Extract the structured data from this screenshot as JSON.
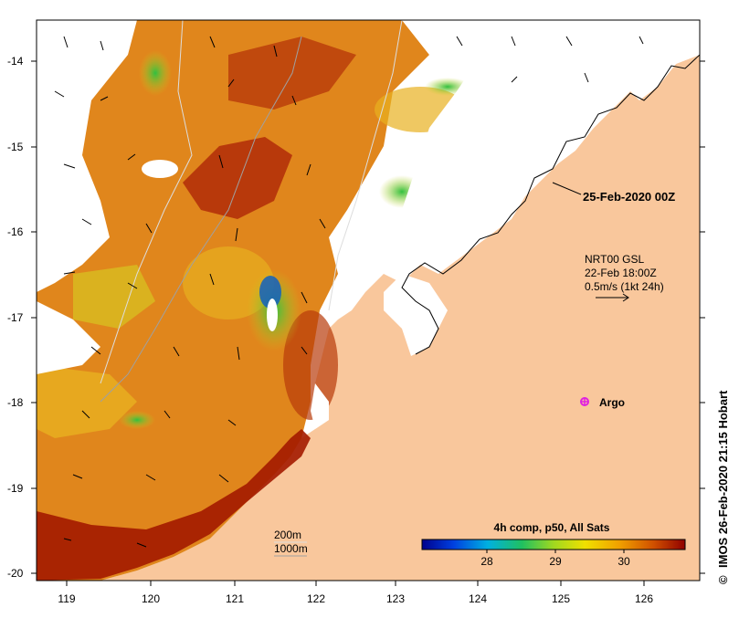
{
  "map": {
    "timestamp_label": "25-Feb-2020 00Z",
    "argo_label": "Argo",
    "scale_200": "200m",
    "scale_1000": "1000m",
    "credit": "IMOS 26-Feb-2020 21:15 Hobart",
    "copyright_symbol": "©",
    "current_legend": {
      "line1": "NRT00 GSL",
      "line2": "22-Feb 18:00Z",
      "line3": "0.5m/s (1kt 24h)"
    },
    "colorbar": {
      "title": "4h comp, p50, All Sats",
      "ticks": [
        "28",
        "29",
        "30"
      ]
    },
    "x_ticks": [
      "119",
      "120",
      "121",
      "122",
      "123",
      "124",
      "125",
      "126"
    ],
    "y_ticks": [
      "-14",
      "-15",
      "-16",
      "-17",
      "-18",
      "-19",
      "-20"
    ],
    "colors": {
      "land": "#f9c79c",
      "hot": "#a31a00",
      "warm": "#d4701c",
      "mid": "#e89a1e",
      "cool": "#c8d020",
      "cold": "#28b840",
      "coldest": "#1060c0",
      "no_data": "#ffffff",
      "argo": "#e020e0"
    }
  }
}
